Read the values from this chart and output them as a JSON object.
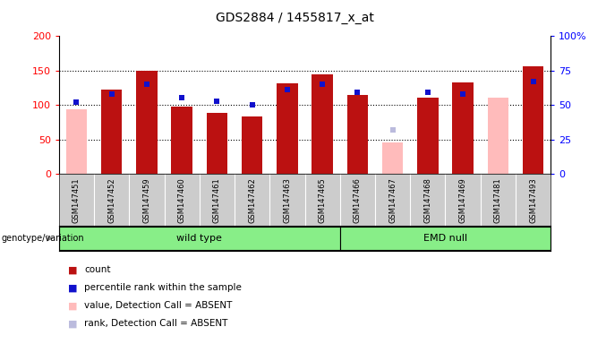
{
  "title": "GDS2884 / 1455817_x_at",
  "samples": [
    "GSM147451",
    "GSM147452",
    "GSM147459",
    "GSM147460",
    "GSM147461",
    "GSM147462",
    "GSM147463",
    "GSM147465",
    "GSM147466",
    "GSM147467",
    "GSM147468",
    "GSM147469",
    "GSM147481",
    "GSM147493"
  ],
  "counts": [
    null,
    122,
    150,
    97,
    88,
    83,
    131,
    145,
    115,
    null,
    110,
    133,
    null,
    156
  ],
  "absent_values": [
    94,
    null,
    null,
    null,
    null,
    null,
    null,
    null,
    null,
    45,
    null,
    null,
    110,
    null
  ],
  "percentile_ranks": [
    52,
    58,
    65,
    55,
    53,
    50,
    61,
    65,
    59,
    null,
    59,
    58,
    null,
    67
  ],
  "absent_ranks": [
    null,
    null,
    null,
    null,
    null,
    null,
    null,
    null,
    null,
    32,
    null,
    null,
    null,
    null
  ],
  "group1_label": "wild type",
  "group2_label": "EMD null",
  "group1_count": 8,
  "group2_count": 6,
  "ylim_left": [
    0,
    200
  ],
  "ylim_right": [
    0,
    100
  ],
  "yticks_left": [
    0,
    50,
    100,
    150,
    200
  ],
  "ytick_labels_right": [
    "0",
    "25",
    "50",
    "75",
    "100%"
  ],
  "bar_color": "#bb1111",
  "absent_bar_color": "#ffbbbb",
  "rank_color": "#1111cc",
  "absent_rank_color": "#bbbbdd",
  "group_color": "#88ee88",
  "label_bg_color": "#cccccc",
  "bg_color": "#ffffff",
  "legend_items": [
    {
      "color": "#bb1111",
      "label": "count"
    },
    {
      "color": "#1111cc",
      "label": "percentile rank within the sample"
    },
    {
      "color": "#ffbbbb",
      "label": "value, Detection Call = ABSENT"
    },
    {
      "color": "#bbbbdd",
      "label": "rank, Detection Call = ABSENT"
    }
  ]
}
